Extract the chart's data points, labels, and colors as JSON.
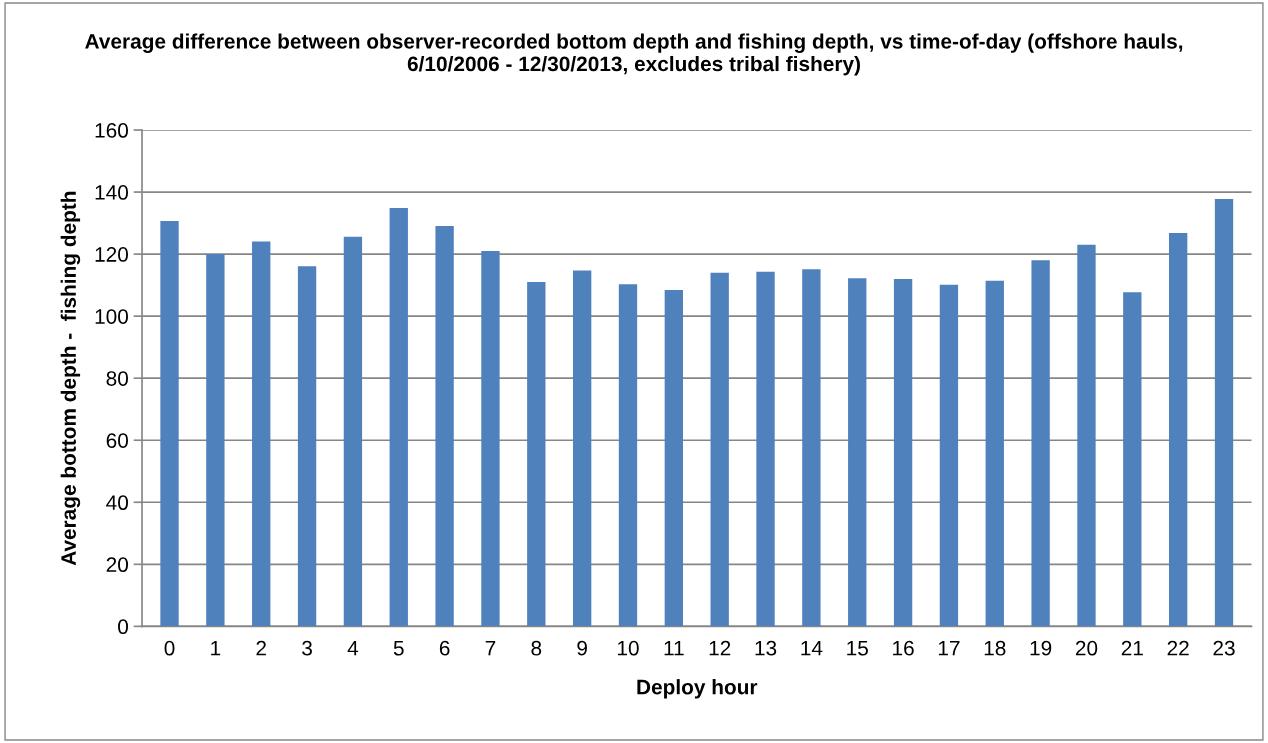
{
  "chart_data": {
    "type": "bar",
    "title": "Average difference between observer-recorded bottom depth and fishing depth, vs time-of-day (offshore hauls, 6/10/2006 - 12/30/2013, excludes tribal fishery)",
    "xlabel": "Deploy hour",
    "ylabel": "Average bottom depth -  fishing depth",
    "categories": [
      "0",
      "1",
      "2",
      "3",
      "4",
      "5",
      "6",
      "7",
      "8",
      "9",
      "10",
      "11",
      "12",
      "13",
      "14",
      "15",
      "16",
      "17",
      "18",
      "19",
      "20",
      "21",
      "22",
      "23"
    ],
    "values": [
      130.7,
      120,
      124.1,
      116.1,
      125.6,
      134.9,
      129.1,
      121,
      111,
      114.7,
      110.3,
      108.4,
      114,
      114.3,
      115.1,
      112.2,
      112,
      110.1,
      111.4,
      118,
      123,
      107.7,
      126.8,
      137.8
    ],
    "color": "#4f81bd",
    "ylim": [
      0,
      160
    ],
    "yticks": [
      0,
      20,
      40,
      60,
      80,
      100,
      120,
      140,
      160
    ],
    "grid": "y",
    "legend": false
  }
}
